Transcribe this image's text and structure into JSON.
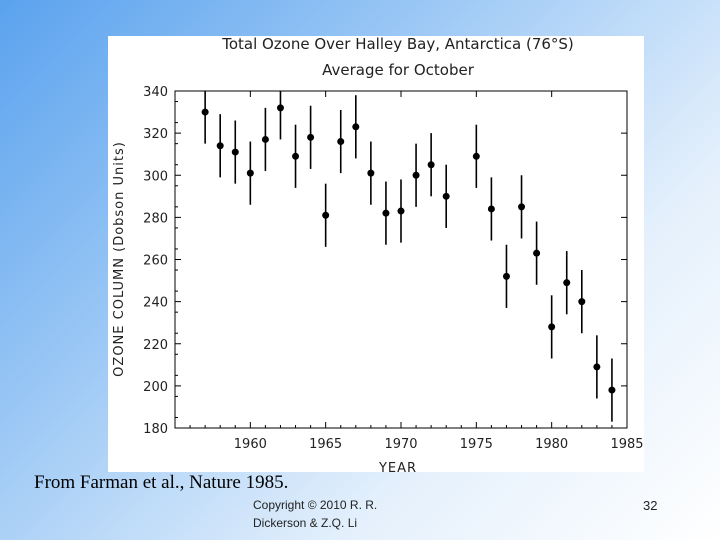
{
  "slide": {
    "citation": "From Farman et al., Nature 1985.",
    "copyright_line1": "Copyright © 2010  R. R.",
    "copyright_line2": "Dickerson & Z.Q. Li",
    "slide_number": "32"
  },
  "chart_data": {
    "type": "scatter",
    "title": "Total Ozone Over Halley Bay, Antarctica (76°S)",
    "subtitle": "Average for October",
    "xlabel": "YEAR",
    "ylabel": "OZONE COLUMN (Dobson Units)",
    "xlim": [
      1955,
      1985
    ],
    "ylim": [
      180,
      340
    ],
    "xticks": [
      1960,
      1965,
      1970,
      1975,
      1980,
      1985
    ],
    "yticks": [
      180,
      200,
      220,
      240,
      260,
      280,
      300,
      320,
      340
    ],
    "grid": false,
    "points": [
      {
        "x": 1957,
        "y": 330,
        "err": 15
      },
      {
        "x": 1958,
        "y": 314,
        "err": 15
      },
      {
        "x": 1959,
        "y": 311,
        "err": 15
      },
      {
        "x": 1960,
        "y": 301,
        "err": 15
      },
      {
        "x": 1961,
        "y": 317,
        "err": 15
      },
      {
        "x": 1962,
        "y": 332,
        "err": 15
      },
      {
        "x": 1963,
        "y": 309,
        "err": 15
      },
      {
        "x": 1964,
        "y": 318,
        "err": 15
      },
      {
        "x": 1965,
        "y": 281,
        "err": 15
      },
      {
        "x": 1966,
        "y": 316,
        "err": 15
      },
      {
        "x": 1967,
        "y": 323,
        "err": 15
      },
      {
        "x": 1968,
        "y": 301,
        "err": 15
      },
      {
        "x": 1969,
        "y": 282,
        "err": 15
      },
      {
        "x": 1970,
        "y": 283,
        "err": 15
      },
      {
        "x": 1971,
        "y": 300,
        "err": 15
      },
      {
        "x": 1972,
        "y": 305,
        "err": 15
      },
      {
        "x": 1973,
        "y": 290,
        "err": 15
      },
      {
        "x": 1975,
        "y": 309,
        "err": 15
      },
      {
        "x": 1976,
        "y": 284,
        "err": 15
      },
      {
        "x": 1977,
        "y": 252,
        "err": 15
      },
      {
        "x": 1978,
        "y": 285,
        "err": 15
      },
      {
        "x": 1979,
        "y": 263,
        "err": 15
      },
      {
        "x": 1980,
        "y": 228,
        "err": 15
      },
      {
        "x": 1981,
        "y": 249,
        "err": 15
      },
      {
        "x": 1982,
        "y": 240,
        "err": 15
      },
      {
        "x": 1983,
        "y": 209,
        "err": 15
      },
      {
        "x": 1984,
        "y": 198,
        "err": 15
      }
    ]
  }
}
